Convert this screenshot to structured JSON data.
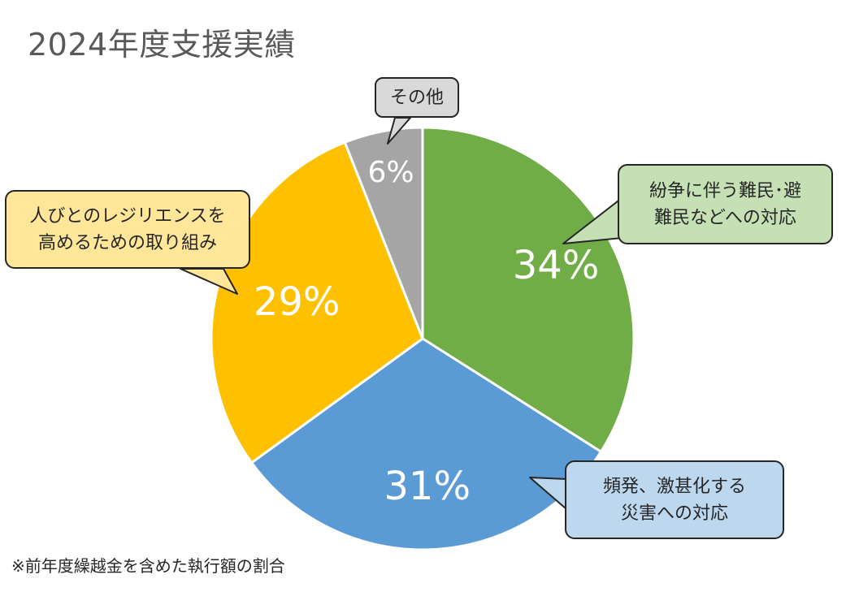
{
  "title": "2024年度支援実績",
  "footnote": "※前年度繰越金を含めた執行額の割合",
  "chart_data": {
    "type": "pie",
    "title": "2024年度支援実績",
    "slices": [
      {
        "key": "conflict",
        "label": "紛争に伴う難民･避\n難民などへの対応",
        "value": 34,
        "value_label": "34%",
        "color": "#70ad47",
        "callout_bg": "#c5e0b4"
      },
      {
        "key": "disaster",
        "label": "頻発、激甚化する\n災害への対応",
        "value": 31,
        "value_label": "31%",
        "color": "#5b9bd5",
        "callout_bg": "#bdd7ee"
      },
      {
        "key": "resilience",
        "label": "人びとのレジリエンスを\n高めるための取り組み",
        "value": 29,
        "value_label": "29%",
        "color": "#ffc000",
        "callout_bg": "#ffe699"
      },
      {
        "key": "other",
        "label": "その他",
        "value": 6,
        "value_label": "6%",
        "color": "#a5a5a5",
        "callout_bg": "#d9d9d9"
      }
    ],
    "start_angle_deg": 0,
    "direction": "clockwise",
    "legend": "callouts"
  }
}
